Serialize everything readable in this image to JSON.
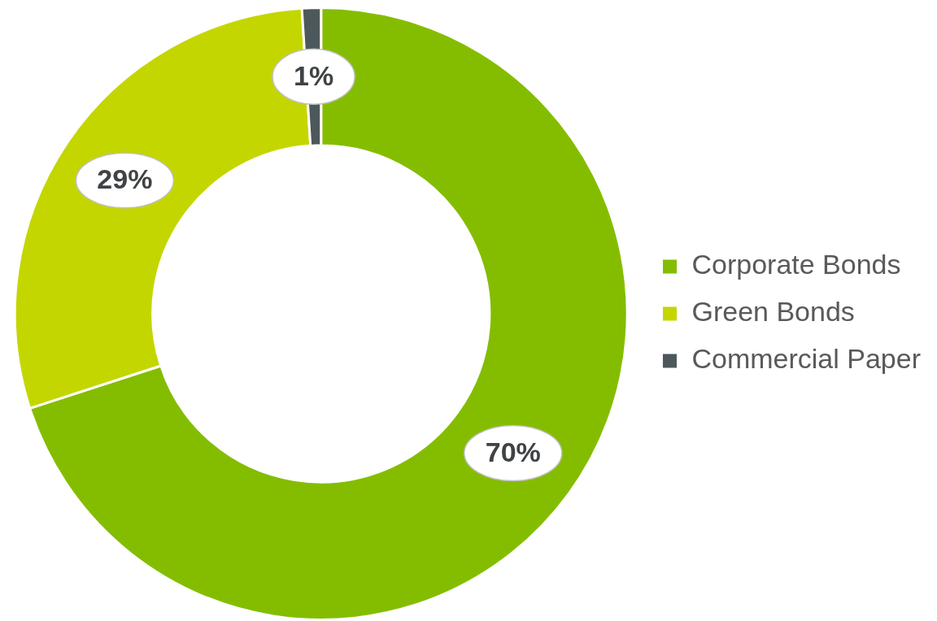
{
  "chart_data": {
    "type": "donut",
    "categories": [
      "Corporate Bonds",
      "Green Bonds",
      "Commercial Paper"
    ],
    "values": [
      70,
      29,
      1
    ],
    "colors": [
      "#84bd00",
      "#c4d600",
      "#4d585c"
    ],
    "value_labels": [
      "70%",
      "29%",
      "1%"
    ],
    "legend": "right"
  }
}
